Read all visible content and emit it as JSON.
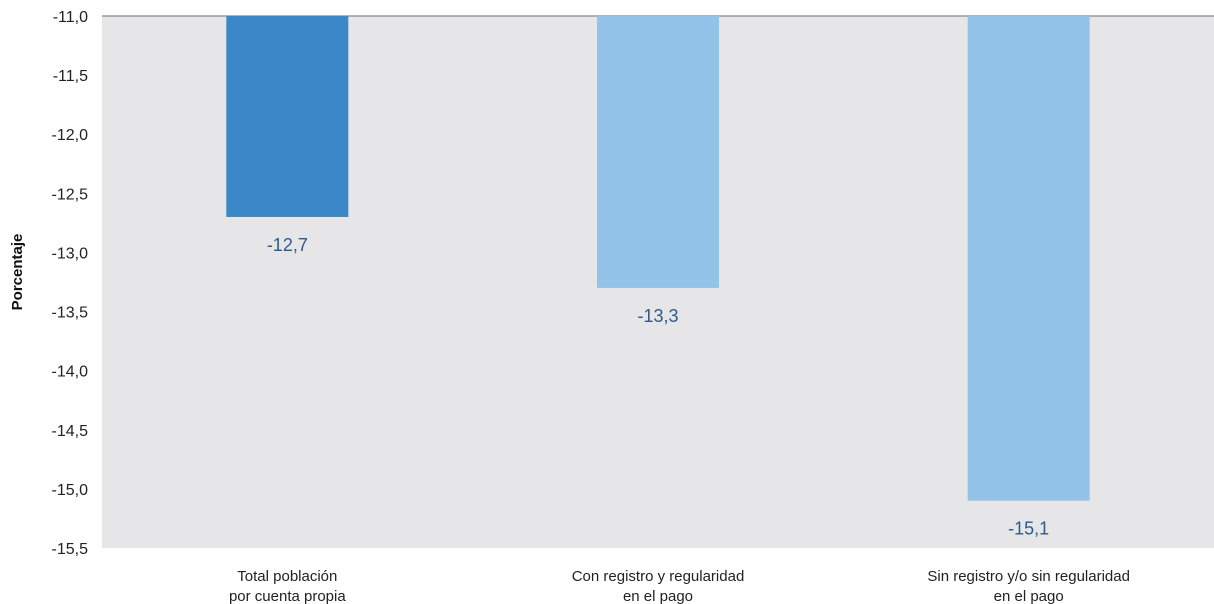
{
  "chart_data": {
    "type": "bar",
    "ylabel": "Porcentaje",
    "xlabel": "",
    "ylim": [
      -15.5,
      -11.0
    ],
    "y_ticks": [
      "-11,0",
      "-11,5",
      "-12,0",
      "-12,5",
      "-13,0",
      "-13,5",
      "-14,0",
      "-14,5",
      "-15,0",
      "-15,5"
    ],
    "y_tick_values": [
      -11.0,
      -11.5,
      -12.0,
      -12.5,
      -13.0,
      -13.5,
      -14.0,
      -14.5,
      -15.0,
      -15.5
    ],
    "categories": [
      [
        "Total población",
        "por cuenta propia"
      ],
      [
        "Con registro y regularidad",
        "en el pago"
      ],
      [
        "Sin registro y/o sin regularidad",
        "en el pago"
      ]
    ],
    "values": [
      -12.7,
      -13.3,
      -15.1
    ],
    "data_labels": [
      "-12,7",
      "-13,3",
      "-15,1"
    ],
    "bar_colors": [
      "#3a88c8",
      "#93c3e8",
      "#93c3e8"
    ],
    "plot_background": "#e6e6e8",
    "grid": false,
    "legend": "none"
  }
}
